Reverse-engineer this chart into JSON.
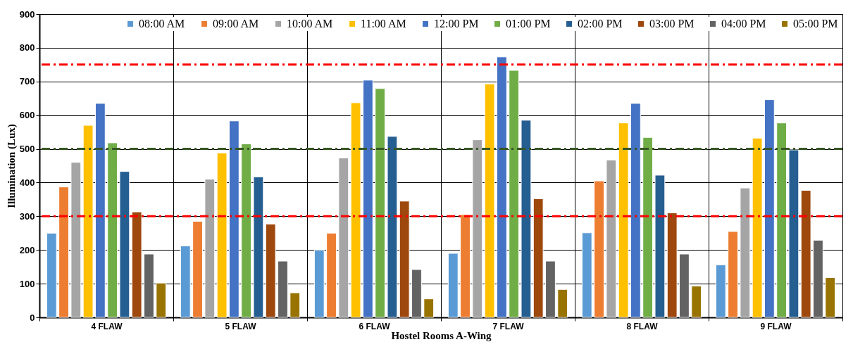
{
  "chart_data": {
    "type": "bar",
    "xlabel": "Hostel Rooms A-Wing",
    "ylabel": "Illumination (Lux)",
    "categories": [
      "4 FLAW",
      "5 FLAW",
      "6 FLAW",
      "7 FLAW",
      "8 FLAW",
      "9 FLAW"
    ],
    "series": [
      {
        "name": "08:00 AM",
        "color": "#5b9bd5",
        "values": [
          250,
          212,
          200,
          190,
          251,
          156
        ]
      },
      {
        "name": "09:00 AM",
        "color": "#ed7d31",
        "values": [
          387,
          285,
          250,
          305,
          405,
          255
        ]
      },
      {
        "name": "10:00 AM",
        "color": "#a5a5a5",
        "values": [
          460,
          410,
          473,
          527,
          467,
          384
        ]
      },
      {
        "name": "11:00 AM",
        "color": "#ffc000",
        "values": [
          570,
          488,
          637,
          693,
          577,
          532
        ]
      },
      {
        "name": "12:00 PM",
        "color": "#4472c4",
        "values": [
          635,
          583,
          704,
          773,
          635,
          646
        ]
      },
      {
        "name": "01:00 PM",
        "color": "#70ad47",
        "values": [
          518,
          515,
          679,
          733,
          534,
          577
        ]
      },
      {
        "name": "02:00 PM",
        "color": "#255e91",
        "values": [
          433,
          417,
          537,
          585,
          422,
          497
        ]
      },
      {
        "name": "03:00 PM",
        "color": "#9e480e",
        "values": [
          313,
          277,
          345,
          352,
          310,
          377
        ]
      },
      {
        "name": "04:00 PM",
        "color": "#636363",
        "values": [
          188,
          167,
          142,
          167,
          188,
          229
        ]
      },
      {
        "name": "05:00 PM",
        "color": "#997300",
        "values": [
          102,
          73,
          55,
          83,
          93,
          118
        ]
      }
    ],
    "ylim": [
      0,
      900
    ],
    "yticks": [
      0,
      100,
      200,
      300,
      400,
      500,
      600,
      700,
      800,
      900
    ],
    "ref_lines": [
      {
        "axis": "y",
        "value": 750,
        "color": "#ff0000",
        "line_style": "dashed"
      },
      {
        "axis": "y",
        "value": 500,
        "color": "#375623",
        "line_style": "dashed"
      },
      {
        "axis": "y",
        "value": 300,
        "color": "#ff0000",
        "line_style": "dashed"
      }
    ],
    "grid": true,
    "legend": "top right"
  }
}
